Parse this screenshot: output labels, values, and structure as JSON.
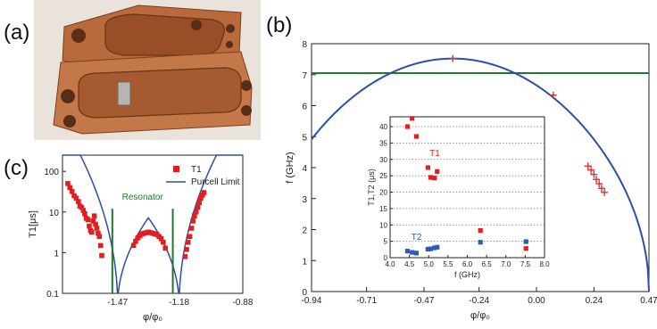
{
  "panel_labels": {
    "a": "(a)",
    "b": "(b)",
    "c": "(c)"
  },
  "photo": {
    "description_icon": "copper-cavity-photo"
  },
  "colors": {
    "curve": "#2a4fa8",
    "horizontal": "#1f7a2a",
    "t1": "#e02020",
    "t2": "#2f5bb5",
    "marker": "#e03030",
    "resonator": "#1f7a2a"
  },
  "chart_data": [
    {
      "id": "b-main",
      "type": "line",
      "xlabel": "φ/φ₀",
      "ylabel": "f (GHz)",
      "xlim": [
        -0.94,
        0.47
      ],
      "ylim": [
        0,
        8
      ],
      "xticks": [
        "-0.94",
        "-0.71",
        "-0.47",
        "-0.24",
        "0.00",
        "0.24",
        "0.47"
      ],
      "xtick_values": [
        -0.94,
        -0.71,
        -0.47,
        -0.24,
        0.0,
        0.24,
        0.47
      ],
      "yticks": [
        "0",
        "1",
        "2",
        "3",
        "4",
        "5",
        "6",
        "7",
        "8"
      ],
      "ytick_values": [
        0,
        1,
        2,
        3,
        4,
        5,
        6,
        7,
        8
      ],
      "horizontal_line": 7.05,
      "curve_peak": {
        "x": -0.35,
        "y": 7.52
      },
      "curve_zero": 0.47,
      "measured_points": [
        {
          "x": -0.35,
          "y": 7.52
        },
        {
          "x": 0.07,
          "y": 6.34
        },
        {
          "x": 0.215,
          "y": 4.05
        },
        {
          "x": 0.228,
          "y": 3.92
        },
        {
          "x": 0.24,
          "y": 3.78
        },
        {
          "x": 0.25,
          "y": 3.62
        },
        {
          "x": 0.262,
          "y": 3.48
        },
        {
          "x": 0.272,
          "y": 3.33
        },
        {
          "x": 0.284,
          "y": 3.2
        }
      ]
    },
    {
      "id": "b-inset",
      "type": "scatter",
      "xlabel": "f (GHz)",
      "ylabel": "T1,T2 (μs)",
      "xlim": [
        4.0,
        8.0
      ],
      "ylim": [
        0,
        43
      ],
      "xticks": [
        "4.0",
        "4.5",
        "5.0",
        "5.5",
        "6.0",
        "6.5",
        "7.0",
        "7.5",
        "8.0"
      ],
      "xtick_values": [
        4.0,
        4.5,
        5.0,
        5.5,
        6.0,
        6.5,
        7.0,
        7.5,
        8.0
      ],
      "yticks": [
        "0",
        "5",
        "10",
        "15",
        "20",
        "25",
        "30",
        "35",
        "40"
      ],
      "ytick_values": [
        0,
        5,
        10,
        15,
        20,
        25,
        30,
        35,
        40
      ],
      "series": [
        {
          "name": "T1",
          "color": "#e02020",
          "x": [
            4.45,
            4.57,
            4.68,
            4.98,
            5.05,
            5.15,
            5.22,
            6.34,
            7.52
          ],
          "y": [
            40,
            42.5,
            37,
            27.5,
            24.5,
            24.3,
            26.3,
            8.3,
            2.8
          ]
        },
        {
          "name": "T2",
          "color": "#2f5bb5",
          "x": [
            4.45,
            4.57,
            4.68,
            4.98,
            5.05,
            5.15,
            5.22,
            6.34,
            7.52
          ],
          "y": [
            2.0,
            1.6,
            1.4,
            2.6,
            2.7,
            3.0,
            3.2,
            4.7,
            4.9
          ]
        }
      ],
      "grid": "horizontal-dotted"
    },
    {
      "id": "c",
      "type": "scatter",
      "xlabel": "φ/φ₀",
      "ylabel": "T1[μs]",
      "xlim": [
        -1.73,
        -0.88
      ],
      "ylim_log": [
        0.1,
        250
      ],
      "xticks": [
        "-1.47",
        "-1.18",
        "-0.88"
      ],
      "xtick_values": [
        -1.47,
        -1.18,
        -0.88
      ],
      "yticks": [
        "0.1",
        "1",
        "10",
        "100"
      ],
      "ytick_values": [
        0.1,
        1,
        10,
        100
      ],
      "legend": [
        "T1",
        "Purcell Limit"
      ],
      "legend_position": "top-right",
      "annotation": "Resonator",
      "resonator_lines": [
        -1.495,
        -1.21
      ],
      "purcell_zeros": [
        -1.47,
        -1.18
      ],
      "series": [
        {
          "name": "T1",
          "color": "#e02020",
          "x": [
            -1.705,
            -1.695,
            -1.685,
            -1.675,
            -1.665,
            -1.655,
            -1.648,
            -1.64,
            -1.632,
            -1.625,
            -1.618,
            -1.61,
            -1.604,
            -1.598,
            -1.592,
            -1.586,
            -1.58,
            -1.574,
            -1.568,
            -1.562,
            -1.556,
            -1.55,
            -1.545,
            -1.395,
            -1.385,
            -1.375,
            -1.365,
            -1.355,
            -1.345,
            -1.335,
            -1.325,
            -1.315,
            -1.305,
            -1.295,
            -1.285,
            -1.275,
            -1.265,
            -1.255,
            -1.245,
            -1.152,
            -1.145,
            -1.138,
            -1.13,
            -1.122,
            -1.115,
            -1.108,
            -1.1,
            -1.092,
            -1.085,
            -1.078,
            -1.07,
            -1.063
          ],
          "y": [
            50,
            40,
            32,
            25,
            22,
            18,
            14,
            13,
            11,
            9,
            7,
            6.5,
            4.5,
            3.5,
            3.2,
            6,
            8,
            5,
            4,
            3,
            2.5,
            1.5,
            0.85,
            1.5,
            1.9,
            2.3,
            2.6,
            2.9,
            3.0,
            3.1,
            3.2,
            3.1,
            3.0,
            2.9,
            2.8,
            2.5,
            2.2,
            1.8,
            1.3,
            0.8,
            1.2,
            1.8,
            2.5,
            4,
            6,
            8,
            10,
            13,
            17,
            22,
            26,
            30
          ]
        }
      ]
    }
  ]
}
